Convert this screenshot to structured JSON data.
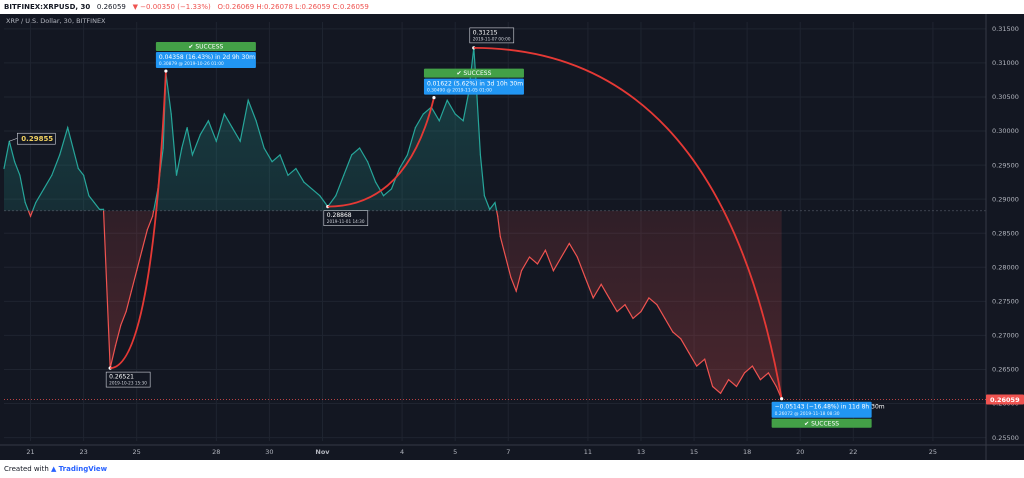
{
  "header": {
    "symbol": "BITFINEX:XRPUSD, 30",
    "last": "0.26059",
    "change": "▼ −0.00350 (−1.33%)",
    "ohlc": "O:0.26069 H:0.26078 L:0.26059 C:0.26059",
    "subtitle": "XRP / U.S. Dollar, 30, BITFINEX"
  },
  "footer": {
    "created_with": "Created with",
    "brand": "TradingView"
  },
  "colors": {
    "up": "#26a69a",
    "down": "#ef5350",
    "arc": "#e53935",
    "label_blue": "#2196f3",
    "success": "#43a047",
    "flag": "#f0d060"
  },
  "chart_data": {
    "type": "line",
    "x_unit": "days from 20 Oct 2019",
    "xlim": [
      0,
      37
    ],
    "ylim": [
      0.2545,
      0.316
    ],
    "y_ticks": [
      "0.31500",
      "0.31000",
      "0.30500",
      "0.30000",
      "0.29500",
      "0.29000",
      "0.28500",
      "0.28000",
      "0.27500",
      "0.27000",
      "0.26500",
      "0.26000",
      "0.25500"
    ],
    "x_ticks": [
      {
        "x": 1,
        "label": "21"
      },
      {
        "x": 3,
        "label": "23"
      },
      {
        "x": 5,
        "label": "25"
      },
      {
        "x": 8,
        "label": "28"
      },
      {
        "x": 10,
        "label": "30"
      },
      {
        "x": 12,
        "label": "Nov"
      },
      {
        "x": 15,
        "label": "4"
      },
      {
        "x": 17,
        "label": "5"
      },
      {
        "x": 19,
        "label": "7"
      },
      {
        "x": 22,
        "label": "11"
      },
      {
        "x": 24,
        "label": "13"
      },
      {
        "x": 26,
        "label": "15"
      },
      {
        "x": 28,
        "label": "18"
      },
      {
        "x": 30,
        "label": "20"
      },
      {
        "x": 32,
        "label": "22"
      },
      {
        "x": 35,
        "label": "25"
      }
    ],
    "baseline": 0.2883,
    "current_price": "0.26059",
    "series": [
      {
        "values": [
          [
            0.0,
            0.2945
          ],
          [
            0.2,
            0.2985
          ],
          [
            0.4,
            0.2955
          ],
          [
            0.6,
            0.2935
          ],
          [
            0.8,
            0.2895
          ],
          [
            1.0,
            0.2875
          ],
          [
            1.2,
            0.2895
          ],
          [
            1.5,
            0.2915
          ],
          [
            1.8,
            0.2935
          ],
          [
            2.1,
            0.2965
          ],
          [
            2.4,
            0.3005
          ],
          [
            2.6,
            0.2975
          ],
          [
            2.8,
            0.2945
          ],
          [
            3.0,
            0.2935
          ],
          [
            3.2,
            0.2905
          ],
          [
            3.4,
            0.2895
          ],
          [
            3.6,
            0.2885
          ],
          [
            3.75,
            0.2885
          ],
          [
            4.0,
            0.2652
          ],
          [
            4.2,
            0.2685
          ],
          [
            4.4,
            0.2715
          ],
          [
            4.6,
            0.2735
          ],
          [
            4.8,
            0.2765
          ],
          [
            5.0,
            0.2795
          ],
          [
            5.2,
            0.2825
          ],
          [
            5.4,
            0.2855
          ],
          [
            5.6,
            0.2875
          ],
          [
            5.8,
            0.2915
          ],
          [
            6.0,
            0.2975
          ],
          [
            6.1,
            0.3085
          ],
          [
            6.3,
            0.3025
          ],
          [
            6.5,
            0.2935
          ],
          [
            6.7,
            0.2975
          ],
          [
            6.9,
            0.3005
          ],
          [
            7.1,
            0.2965
          ],
          [
            7.4,
            0.2995
          ],
          [
            7.7,
            0.3015
          ],
          [
            8.0,
            0.2985
          ],
          [
            8.3,
            0.3025
          ],
          [
            8.6,
            0.3005
          ],
          [
            8.9,
            0.2985
          ],
          [
            9.2,
            0.3045
          ],
          [
            9.5,
            0.3015
          ],
          [
            9.8,
            0.2975
          ],
          [
            10.1,
            0.2955
          ],
          [
            10.4,
            0.2965
          ],
          [
            10.7,
            0.2935
          ],
          [
            11.0,
            0.2945
          ],
          [
            11.3,
            0.2925
          ],
          [
            11.6,
            0.2915
          ],
          [
            11.9,
            0.2905
          ],
          [
            12.2,
            0.2889
          ],
          [
            12.5,
            0.2905
          ],
          [
            12.8,
            0.2935
          ],
          [
            13.1,
            0.2965
          ],
          [
            13.4,
            0.2975
          ],
          [
            13.7,
            0.2955
          ],
          [
            14.0,
            0.2925
          ],
          [
            14.3,
            0.2905
          ],
          [
            14.6,
            0.2915
          ],
          [
            14.9,
            0.2945
          ],
          [
            15.2,
            0.2965
          ],
          [
            15.5,
            0.3005
          ],
          [
            15.8,
            0.3025
          ],
          [
            16.1,
            0.3035
          ],
          [
            16.4,
            0.3015
          ],
          [
            16.7,
            0.3045
          ],
          [
            17.0,
            0.3025
          ],
          [
            17.3,
            0.3015
          ],
          [
            17.5,
            0.3055
          ],
          [
            17.7,
            0.3122
          ],
          [
            17.8,
            0.3065
          ],
          [
            17.95,
            0.2965
          ],
          [
            18.1,
            0.2905
          ],
          [
            18.3,
            0.2885
          ],
          [
            18.5,
            0.2895
          ],
          [
            18.6,
            0.2875
          ],
          [
            18.7,
            0.2845
          ],
          [
            18.9,
            0.2815
          ],
          [
            19.1,
            0.2785
          ],
          [
            19.3,
            0.2765
          ],
          [
            19.5,
            0.2795
          ],
          [
            19.8,
            0.2815
          ],
          [
            20.1,
            0.2805
          ],
          [
            20.4,
            0.2825
          ],
          [
            20.7,
            0.2795
          ],
          [
            21.0,
            0.2815
          ],
          [
            21.3,
            0.2835
          ],
          [
            21.6,
            0.2815
          ],
          [
            21.9,
            0.2785
          ],
          [
            22.2,
            0.2755
          ],
          [
            22.5,
            0.2775
          ],
          [
            22.8,
            0.2755
          ],
          [
            23.1,
            0.2735
          ],
          [
            23.4,
            0.2745
          ],
          [
            23.7,
            0.2725
          ],
          [
            24.0,
            0.2735
          ],
          [
            24.3,
            0.2755
          ],
          [
            24.6,
            0.2745
          ],
          [
            24.9,
            0.2725
          ],
          [
            25.2,
            0.2705
          ],
          [
            25.5,
            0.2695
          ],
          [
            25.8,
            0.2675
          ],
          [
            26.1,
            0.2655
          ],
          [
            26.4,
            0.2665
          ],
          [
            26.7,
            0.2625
          ],
          [
            27.0,
            0.2615
          ],
          [
            27.3,
            0.2635
          ],
          [
            27.6,
            0.2625
          ],
          [
            27.9,
            0.2645
          ],
          [
            28.2,
            0.2655
          ],
          [
            28.5,
            0.2635
          ],
          [
            28.8,
            0.2645
          ],
          [
            29.1,
            0.2625
          ],
          [
            29.3,
            0.2607
          ]
        ]
      }
    ],
    "annotations": [
      {
        "kind": "low",
        "price": "0.26521",
        "date": "2019-10-23  15:30",
        "x": 4.0,
        "y": 0.2652
      },
      {
        "kind": "measure",
        "from_x": 4.0,
        "from_y": 0.2652,
        "to_x": 6.1,
        "to_y": 0.3088,
        "status": "✔ SUCCESS",
        "text": "0.04358 (16.43%) in 2d 9h 30m",
        "subtext": "0.30879 @ 2019-10-26  01:00"
      },
      {
        "kind": "low",
        "price": "0.28868",
        "date": "2019-11-01  14:30",
        "x": 12.2,
        "y": 0.2889
      },
      {
        "kind": "measure",
        "from_x": 12.2,
        "from_y": 0.2889,
        "to_x": 16.2,
        "to_y": 0.3049,
        "status": "✔ SUCCESS",
        "text": "0.01622 (5.62%) in 3d 10h 30m",
        "subtext": "0.30490 @ 2019-11-05  01:00"
      },
      {
        "kind": "high",
        "price": "0.31215",
        "date": "2019-11-07  00:00",
        "x": 17.7,
        "y": 0.3122
      },
      {
        "kind": "measure",
        "from_x": 17.7,
        "from_y": 0.3122,
        "to_x": 29.3,
        "to_y": 0.2607,
        "status": "✔ SUCCESS",
        "text": "−0.05143 (−16.48%) in 11d 8h 30m",
        "subtext": "0.26072 @ 2019-11-18  08:30"
      },
      {
        "kind": "flag",
        "price": "0.29855",
        "x": 0.2,
        "y": 0.2985
      }
    ]
  }
}
